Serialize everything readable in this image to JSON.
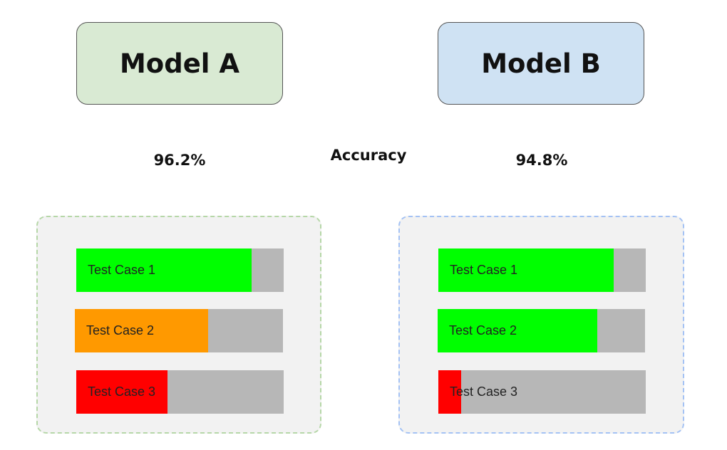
{
  "colors": {
    "model_a_fill": "#d9ead3",
    "model_b_fill": "#cfe2f3",
    "model_a_border": "#b6d7a8",
    "model_b_border": "#a4c2f4",
    "pass": "#00ff00",
    "partial": "#ff9900",
    "fail": "#ff0000",
    "track": "#b7b7b7"
  },
  "models": [
    {
      "name": "Model A",
      "accuracy": "96.2%",
      "test_cases": [
        {
          "label": "Test Case 1",
          "fill_fraction": 0.845,
          "status": "pass"
        },
        {
          "label": "Test Case 2",
          "fill_fraction": 0.64,
          "status": "partial"
        },
        {
          "label": "Test Case 3",
          "fill_fraction": 0.44,
          "status": "fail"
        }
      ]
    },
    {
      "name": "Model B",
      "accuracy": "94.8%",
      "test_cases": [
        {
          "label": "Test Case 1",
          "fill_fraction": 0.845,
          "status": "pass"
        },
        {
          "label": "Test Case 2",
          "fill_fraction": 0.77,
          "status": "pass"
        },
        {
          "label": "Test Case 3",
          "fill_fraction": 0.11,
          "status": "fail"
        }
      ]
    }
  ],
  "metric_label": "Accuracy"
}
